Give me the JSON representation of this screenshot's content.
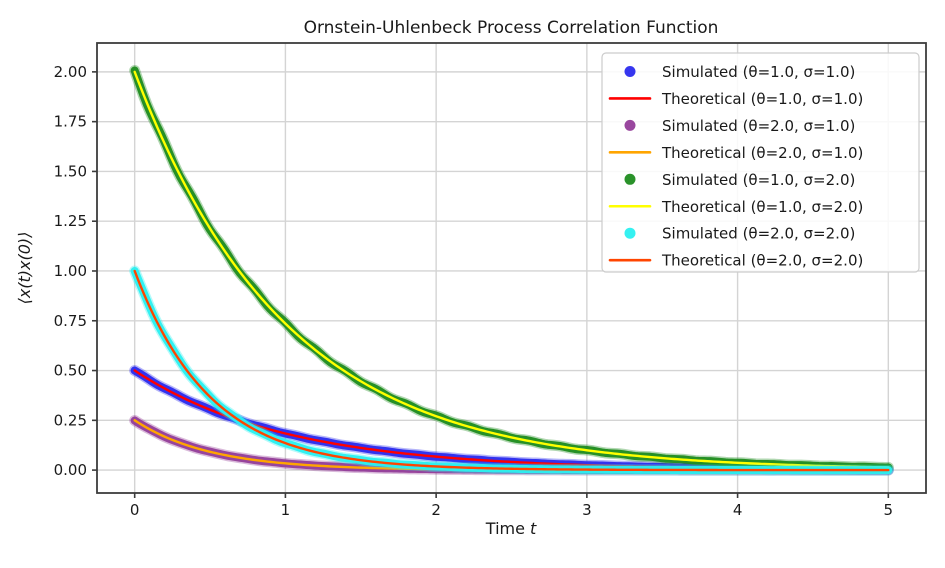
{
  "chart_data": {
    "type": "line",
    "title": "Ornstein-Uhlenbeck Process Correlation Function",
    "xlabel": "Time t",
    "xlabel_prefix": "Time",
    "xlabel_var": "t",
    "ylabel": "⟨x(t)x(0)⟩",
    "xlim": [
      -0.25,
      5.25
    ],
    "ylim": [
      -0.115,
      2.145
    ],
    "xticks": [
      0,
      1,
      2,
      3,
      4,
      5
    ],
    "xtick_labels": [
      "0",
      "1",
      "2",
      "3",
      "4",
      "5"
    ],
    "yticks": [
      0.0,
      0.25,
      0.5,
      0.75,
      1.0,
      1.25,
      1.5,
      1.75,
      2.0
    ],
    "ytick_labels": [
      "0.00",
      "0.25",
      "0.50",
      "0.75",
      "1.00",
      "1.25",
      "1.50",
      "1.75",
      "2.00"
    ],
    "grid": true,
    "legend_position": "upper right",
    "x_samples": [
      0.0,
      0.5,
      1.0,
      1.5,
      2.0,
      2.5,
      3.0,
      3.5,
      4.0,
      4.5,
      5.0
    ],
    "series": [
      {
        "name": "Simulated (θ=1.0, σ=1.0)",
        "style": "scatter",
        "color": "#2b2bee",
        "theta": 1.0,
        "sigma": 1.0,
        "c0": 0.5,
        "values": [
          0.5,
          0.303,
          0.184,
          0.112,
          0.068,
          0.041,
          0.025,
          0.015,
          0.009,
          0.006,
          0.003
        ]
      },
      {
        "name": "Theoretical (θ=1.0, σ=1.0)",
        "style": "line",
        "color": "#ff0000",
        "theta": 1.0,
        "sigma": 1.0,
        "c0": 0.5,
        "values": [
          0.5,
          0.303,
          0.184,
          0.112,
          0.068,
          0.041,
          0.025,
          0.015,
          0.009,
          0.006,
          0.003
        ]
      },
      {
        "name": "Simulated (θ=2.0, σ=1.0)",
        "style": "scatter",
        "color": "#943d99",
        "theta": 2.0,
        "sigma": 1.0,
        "c0": 0.25,
        "values": [
          0.25,
          0.092,
          0.034,
          0.012,
          0.005,
          0.002,
          0.001,
          0.0,
          0.0,
          0.0,
          0.0
        ]
      },
      {
        "name": "Theoretical (θ=2.0, σ=1.0)",
        "style": "line",
        "color": "#ffa500",
        "theta": 2.0,
        "sigma": 1.0,
        "c0": 0.25,
        "values": [
          0.25,
          0.092,
          0.034,
          0.012,
          0.005,
          0.002,
          0.001,
          0.0,
          0.0,
          0.0,
          0.0
        ]
      },
      {
        "name": "Simulated (θ=1.0, σ=2.0)",
        "style": "scatter",
        "color": "#1f8c1f",
        "theta": 1.0,
        "sigma": 2.0,
        "c0": 2.0,
        "values": [
          2.0,
          1.213,
          0.736,
          0.446,
          0.271,
          0.164,
          0.1,
          0.06,
          0.037,
          0.022,
          0.013
        ]
      },
      {
        "name": "Theoretical (θ=1.0, σ=2.0)",
        "style": "line",
        "color": "#ffff00",
        "theta": 1.0,
        "sigma": 2.0,
        "c0": 2.0,
        "values": [
          2.0,
          1.213,
          0.736,
          0.446,
          0.271,
          0.164,
          0.1,
          0.06,
          0.037,
          0.022,
          0.013
        ]
      },
      {
        "name": "Simulated (θ=2.0, σ=2.0)",
        "style": "scatter",
        "color": "#2af0f0",
        "theta": 2.0,
        "sigma": 2.0,
        "c0": 1.0,
        "values": [
          1.0,
          0.368,
          0.135,
          0.05,
          0.018,
          0.007,
          0.002,
          0.001,
          0.0,
          0.0,
          0.0
        ]
      },
      {
        "name": "Theoretical (θ=2.0, σ=2.0)",
        "style": "line",
        "color": "#ff4500",
        "theta": 2.0,
        "sigma": 2.0,
        "c0": 1.0,
        "values": [
          1.0,
          0.368,
          0.135,
          0.05,
          0.018,
          0.007,
          0.002,
          0.001,
          0.0,
          0.0,
          0.0
        ]
      }
    ],
    "colors": {
      "grid": "#d4d4d4",
      "spine": "#3c3c3c",
      "tick": "#3c3c3c",
      "legend_border": "#cccccc",
      "legend_background": "#ffffff",
      "plot_background": "#ffffff"
    }
  }
}
